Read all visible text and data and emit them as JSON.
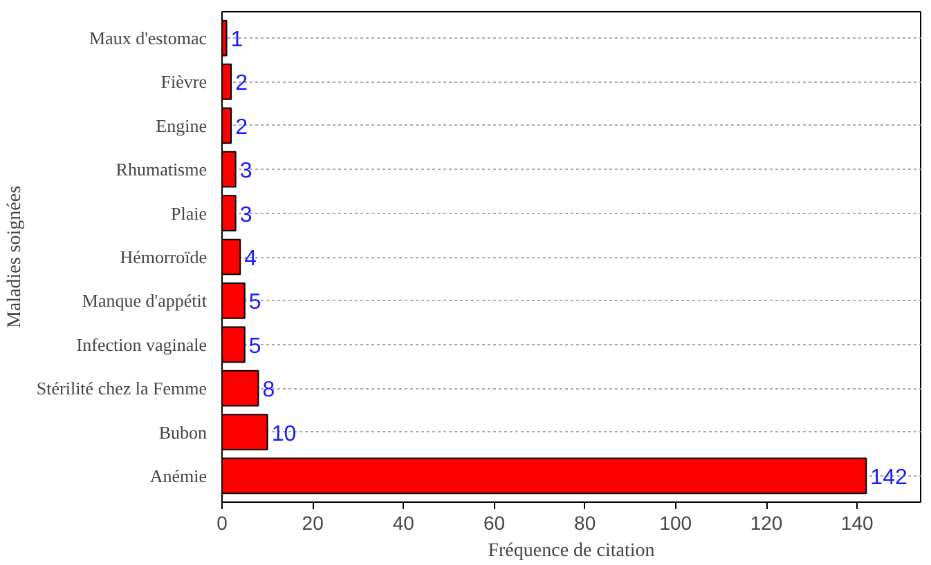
{
  "chart_data": {
    "type": "bar",
    "orientation": "horizontal",
    "xlabel": "Fréquence de citation",
    "ylabel": "Maladies soignées",
    "categories": [
      "Maux d'estomac",
      "Fièvre",
      "Engine",
      "Rhumatisme",
      "Plaie",
      "Hémorroïde",
      "Manque d'appétit",
      "Infection vaginale",
      "Stérilité chez la Femme",
      "Bubon",
      "Anémie"
    ],
    "values": [
      1,
      2,
      2,
      3,
      3,
      4,
      5,
      5,
      8,
      10,
      142
    ],
    "color": "#ff0000",
    "data_labels": true,
    "xlim": [
      0,
      154
    ],
    "xticks": [
      0,
      20,
      40,
      60,
      80,
      100,
      120,
      140
    ],
    "grid": "y"
  }
}
